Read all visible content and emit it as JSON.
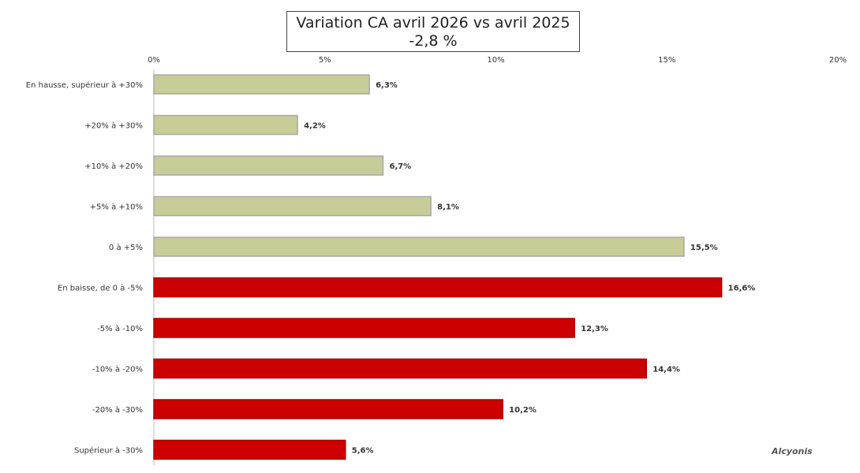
{
  "chart_data": {
    "type": "bar",
    "orientation": "horizontal",
    "title": "Variation CA avril 2026 vs avril 2025",
    "subtitle": "-2,8 %",
    "xlim": [
      0,
      20
    ],
    "x_ticks": [
      "0%",
      "5%",
      "10%",
      "15%",
      "20%"
    ],
    "grid": false,
    "categories": [
      "En hausse, supérieur à +30%",
      "+20% à +30%",
      "+10% à +20%",
      "+5% à +10%",
      "0 à +5%",
      "En baisse, de 0 à -5%",
      "-5% à -10%",
      "-10% à -20%",
      "-20% à -30%",
      "Supérieur à -30%"
    ],
    "values": [
      6.3,
      4.2,
      6.7,
      8.1,
      15.5,
      16.6,
      12.3,
      14.4,
      10.2,
      5.6
    ],
    "value_labels": [
      "6,3%",
      "4,2%",
      "6,7%",
      "8,1%",
      "15,5%",
      "16,6%",
      "12,3%",
      "14,4%",
      "10,2%",
      "5,6%"
    ],
    "colors": {
      "increase": "#c8cc96",
      "decrease": "#cc0000"
    },
    "series_direction": [
      "increase",
      "increase",
      "increase",
      "increase",
      "increase",
      "decrease",
      "decrease",
      "decrease",
      "decrease",
      "decrease"
    ]
  },
  "watermark": "Alcyonis"
}
